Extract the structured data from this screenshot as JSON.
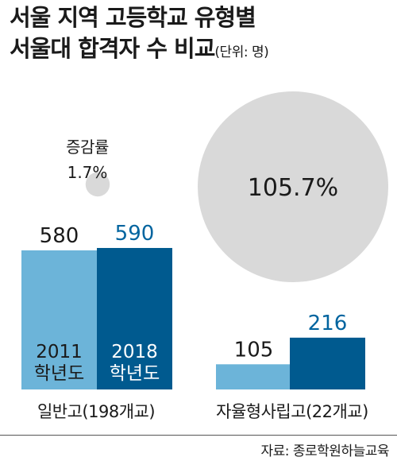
{
  "title_line1": "서울 지역 고등학교 유형별",
  "title_line2": "서울대 합격자 수 비교",
  "unit": "(단위: 명)",
  "source": "자료: 종로학원하늘교육",
  "colors": {
    "year_2011": "#6cb4d9",
    "year_2018": "#005a8f",
    "circle": "#d9d9d9",
    "value_2018_text": "#00649f",
    "text": "#1a1a1a"
  },
  "chart_data": {
    "type": "bar",
    "categories": [
      "일반고(198개교)",
      "자율형사립고(22개교)"
    ],
    "series": [
      {
        "name": "2011 학년도",
        "values": [
          580,
          105
        ]
      },
      {
        "name": "2018 학년도",
        "values": [
          590,
          216
        ]
      }
    ],
    "series_label_lines": [
      [
        "2011",
        "학년도"
      ],
      [
        "2018",
        "학년도"
      ]
    ],
    "increase_label": "증감률",
    "increase_rates": [
      "1.7%",
      "105.7%"
    ],
    "increase_rate_values": [
      1.7,
      105.7
    ]
  }
}
